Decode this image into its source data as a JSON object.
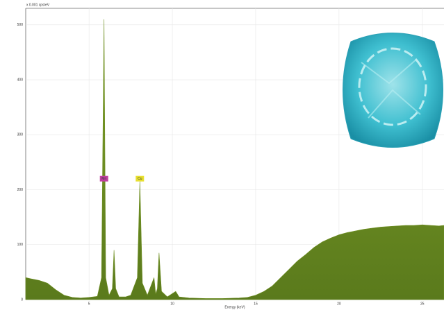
{
  "chart_data": {
    "type": "area",
    "y_label": "x 0.001 cps/eV",
    "x_label": "Energy (keV)",
    "x": [
      1.2,
      1.5,
      2,
      2.5,
      3,
      3.5,
      4,
      4.5,
      5,
      5.5,
      5.75,
      5.9,
      6.0,
      6.2,
      6.4,
      6.5,
      6.6,
      6.8,
      7.2,
      7.5,
      7.9,
      8.05,
      8.2,
      8.5,
      8.9,
      9.0,
      9.1,
      9.2,
      9.35,
      9.7,
      10.2,
      10.4,
      11,
      12,
      13,
      14,
      14.5,
      15,
      15.5,
      16,
      16.5,
      17,
      17.5,
      18,
      18.5,
      19,
      19.5,
      20,
      20.5,
      21,
      21.5,
      22,
      22.5,
      23,
      23.5,
      24,
      24.5,
      25,
      25.5,
      26,
      26.3
    ],
    "values": [
      40,
      38,
      35,
      30,
      18,
      8,
      4,
      3,
      4,
      6,
      40,
      510,
      40,
      8,
      20,
      90,
      20,
      5,
      5,
      8,
      40,
      215,
      30,
      8,
      40,
      10,
      20,
      85,
      15,
      5,
      15,
      5,
      3,
      2,
      2,
      3,
      4,
      8,
      15,
      25,
      40,
      55,
      70,
      82,
      95,
      105,
      112,
      118,
      122,
      125,
      128,
      130,
      132,
      133,
      134,
      135,
      135,
      136,
      135,
      134,
      135
    ],
    "color": "#6f8f22",
    "annotations": [
      {
        "text": "Mn",
        "x": 5.9,
        "y": 220,
        "color": "#c040a0"
      },
      {
        "text": "Cu",
        "x": 8.05,
        "y": 220,
        "color": "#e8e030"
      }
    ],
    "xlim": [
      1.2,
      26.3
    ],
    "xticks": [
      5,
      10,
      15,
      20,
      25
    ],
    "ylim": [
      0,
      530
    ],
    "yticks": [
      0,
      100,
      200,
      300,
      400,
      500
    ],
    "grid": true
  }
}
